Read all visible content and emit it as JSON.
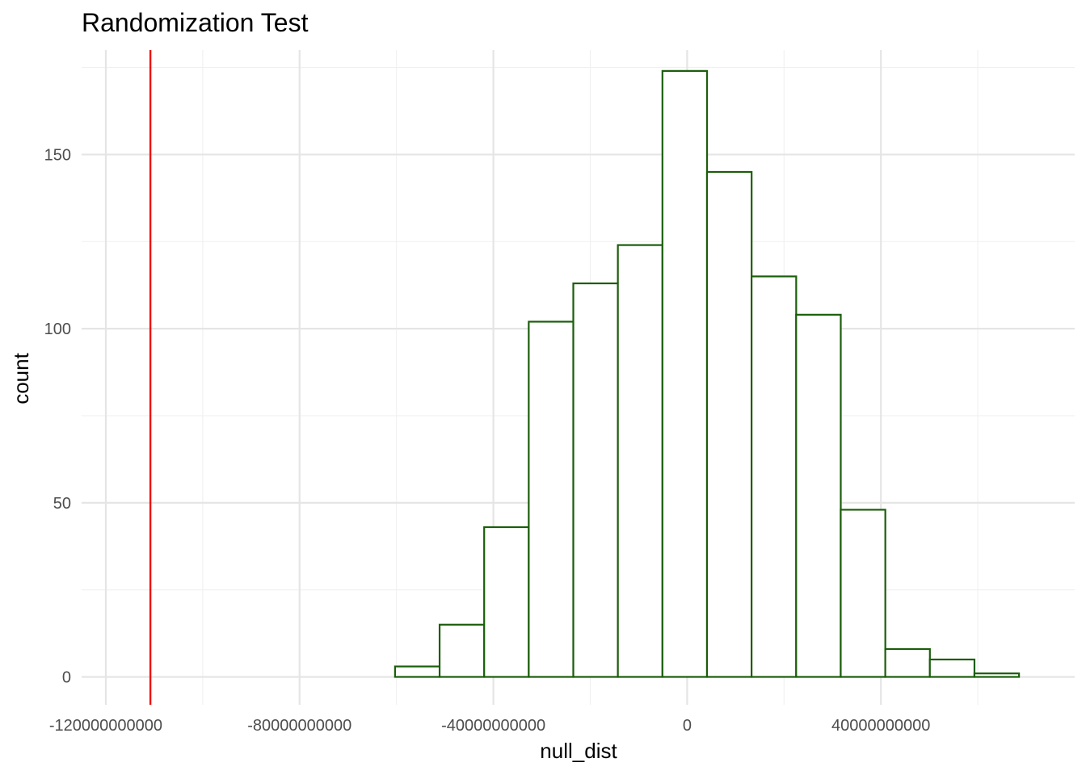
{
  "chart_data": {
    "type": "bar",
    "title": "Randomization Test",
    "xlabel": "null_dist",
    "ylabel": "count",
    "xlim": [
      -125000000000,
      80000000000
    ],
    "ylim": [
      -8,
      180
    ],
    "x_major_ticks": [
      -120000000000,
      -80000000000,
      -40000000000,
      0,
      40000000000
    ],
    "x_tick_labels": [
      "-120000000000",
      "-80000000000",
      "-40000000000",
      "0",
      "40000000000"
    ],
    "x_minor_ticks": [
      -100000000000,
      -60000000000,
      -20000000000,
      20000000000,
      60000000000
    ],
    "y_major_ticks": [
      0,
      50,
      100,
      150
    ],
    "y_tick_labels": [
      "0",
      "50",
      "100",
      "150"
    ],
    "y_minor_ticks": [
      25,
      75,
      125,
      175
    ],
    "bin_width": 9210000000,
    "bin_starts": [
      -115600000000,
      -106400000000,
      -97200000000,
      -88000000000,
      -78800000000,
      -69600000000,
      -60300000000,
      -51100000000,
      -41900000000,
      -32700000000,
      -23500000000,
      -14300000000,
      -5100000000,
      4100000000,
      13300000000,
      22500000000,
      31700000000,
      40900000000,
      50100000000,
      59300000000
    ],
    "counts": [
      0,
      0,
      0,
      0,
      0,
      0,
      3,
      15,
      43,
      102,
      113,
      124,
      174,
      145,
      115,
      104,
      48,
      8,
      5,
      1
    ],
    "observed_stat": -110800000000,
    "colors": {
      "bar_outline": "#1b5e0b",
      "bar_fill": "#ffffff",
      "observed_line": "#ee1111"
    },
    "grid": true,
    "legend": "none"
  }
}
